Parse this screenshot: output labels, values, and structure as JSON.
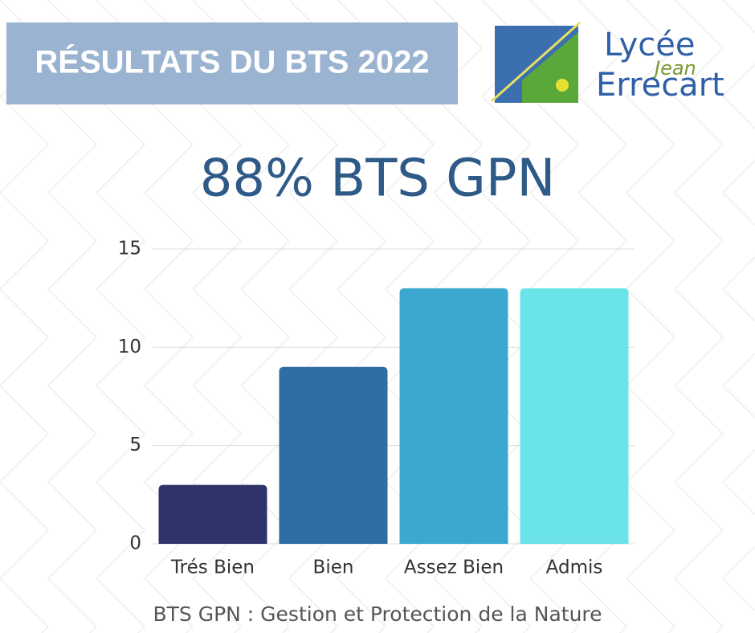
{
  "header": {
    "banner": "RÉSULTATS DU BTS 2022",
    "logo_line1": "Lycée",
    "logo_line2": "Jean",
    "logo_line3": "Errecart"
  },
  "chart_data": {
    "type": "bar",
    "title": "88% BTS GPN",
    "caption": "BTS GPN : Gestion et Protection de la Nature",
    "categories": [
      "Trés Bien",
      "Bien",
      "Assez Bien",
      "Admis"
    ],
    "values": [
      3,
      9,
      13,
      13
    ],
    "colors": [
      "#2e3469",
      "#2d6ea5",
      "#3aa8cf",
      "#6ae4e8"
    ],
    "ylim": [
      0,
      15
    ],
    "yticks": [
      0,
      5,
      10,
      15
    ],
    "grid": true
  }
}
